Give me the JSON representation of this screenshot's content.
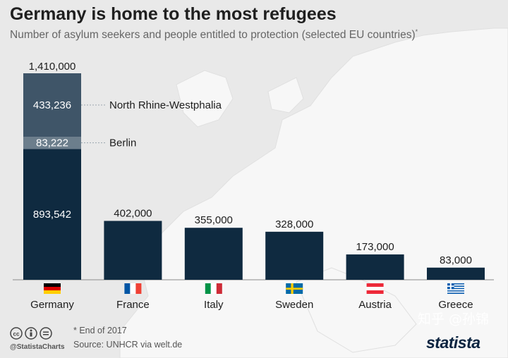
{
  "header": {
    "title": "Germany is home to the most refugees",
    "subtitle": "Number of asylum seekers and people entitled to protection (selected EU countries)",
    "subtitle_mark": "*"
  },
  "colors": {
    "bar": "#0f2a40",
    "segment_nrw": "#3f5568",
    "segment_berlin": "#6c7e8c",
    "text": "#1d1d1d"
  },
  "chart_data": {
    "type": "bar",
    "categories": [
      "Germany",
      "France",
      "Italy",
      "Sweden",
      "Austria",
      "Greece"
    ],
    "values": [
      1410000,
      402000,
      355000,
      328000,
      173000,
      83000
    ],
    "value_labels": [
      "1,410,000",
      "402,000",
      "355,000",
      "328,000",
      "173,000",
      "83,000"
    ],
    "flags": [
      "germany-flag",
      "france-flag",
      "italy-flag",
      "sweden-flag",
      "austria-flag",
      "greece-flag"
    ],
    "germany_breakdown": [
      {
        "name": "North Rhine-Westphalia",
        "value": 433236,
        "label": "433,236"
      },
      {
        "name": "Berlin",
        "value": 83222,
        "label": "83,222"
      },
      {
        "name": "",
        "value": 893542,
        "label": "893,542"
      }
    ],
    "ylim": [
      0,
      1410000
    ],
    "grid": false
  },
  "footer": {
    "note": "* End of 2017",
    "source": "Source: UNHCR via welt.de",
    "handle": "@StatistaCharts",
    "logo": "statista",
    "watermark": "知乎 @孙锦"
  }
}
